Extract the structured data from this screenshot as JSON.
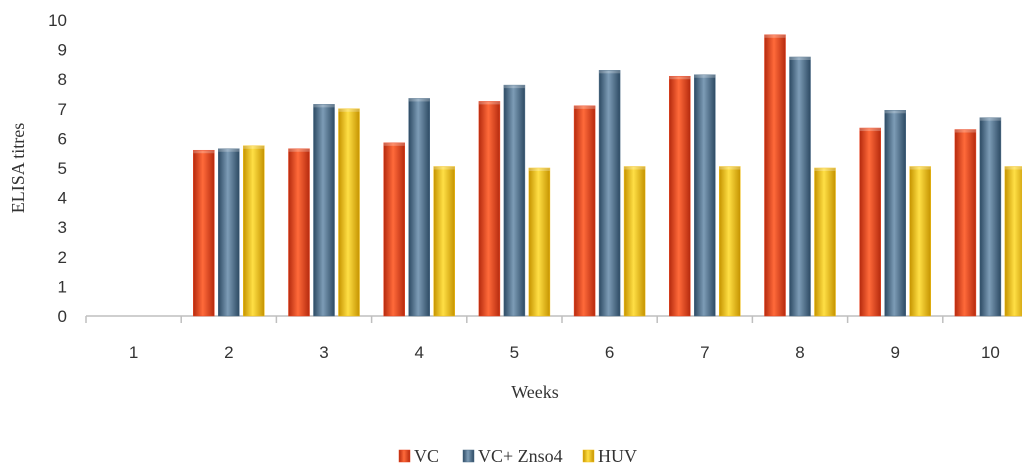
{
  "chart_data": {
    "type": "bar",
    "title": "",
    "xlabel": "Weeks",
    "ylabel": "ELISA titres",
    "ylim": [
      0,
      10
    ],
    "yticks": [
      0,
      1,
      2,
      3,
      4,
      5,
      6,
      7,
      8,
      9,
      10
    ],
    "categories": [
      "1",
      "2",
      "3",
      "4",
      "5",
      "6",
      "7",
      "8",
      "9",
      "10"
    ],
    "grid": false,
    "legend": "bottom-center",
    "series": [
      {
        "name": "VC",
        "color": "#e8401c",
        "values": [
          0,
          5.6,
          5.65,
          5.85,
          7.25,
          7.1,
          8.1,
          9.5,
          6.35,
          6.3
        ]
      },
      {
        "name": "VC+ Znso4",
        "color": "#4a6b86",
        "values": [
          0,
          5.65,
          7.15,
          7.35,
          7.8,
          8.3,
          8.15,
          8.75,
          6.95,
          6.7
        ]
      },
      {
        "name": "HUV",
        "color": "#f2bd10",
        "values": [
          0,
          5.75,
          7.0,
          5.05,
          5.0,
          5.05,
          5.05,
          5.0,
          5.05,
          5.05
        ]
      }
    ]
  }
}
